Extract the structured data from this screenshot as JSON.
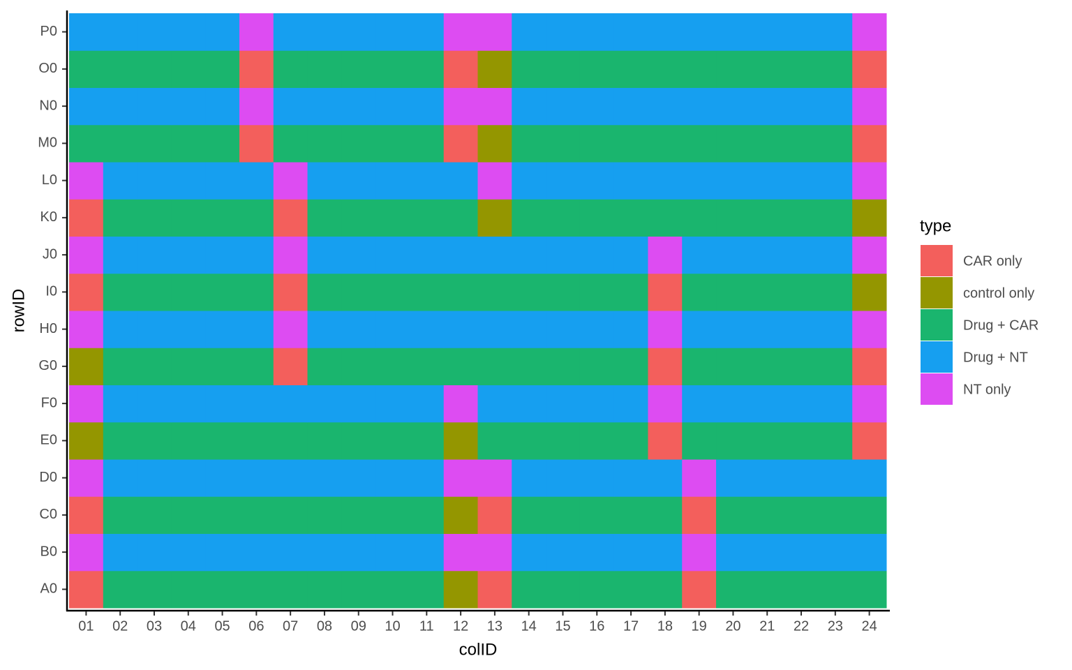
{
  "chart_data": {
    "type": "heatmap",
    "x_label": "colID",
    "y_label": "rowID",
    "categories": [
      "01",
      "02",
      "03",
      "04",
      "05",
      "06",
      "07",
      "08",
      "09",
      "10",
      "11",
      "12",
      "13",
      "14",
      "15",
      "16",
      "17",
      "18",
      "19",
      "20",
      "21",
      "22",
      "23",
      "24"
    ],
    "rows": [
      "A0",
      "B0",
      "C0",
      "D0",
      "E0",
      "F0",
      "G0",
      "H0",
      "I0",
      "J0",
      "K0",
      "L0",
      "M0",
      "N0",
      "O0",
      "P0"
    ],
    "legend": {
      "title": "type",
      "position": "right",
      "items": [
        {
          "name": "CAR only",
          "color": "#F35F5C"
        },
        {
          "name": "control only",
          "color": "#949600"
        },
        {
          "name": "Drug + CAR",
          "color": "#1AB56E"
        },
        {
          "name": "Drug + NT",
          "color": "#169FF0"
        },
        {
          "name": "NT only",
          "color": "#DD4CF2"
        }
      ]
    },
    "values": [
      [
        0,
        2,
        2,
        2,
        2,
        2,
        2,
        2,
        2,
        2,
        2,
        1,
        0,
        2,
        2,
        2,
        2,
        2,
        0,
        2,
        2,
        2,
        2,
        2
      ],
      [
        4,
        3,
        3,
        3,
        3,
        3,
        3,
        3,
        3,
        3,
        3,
        4,
        4,
        3,
        3,
        3,
        3,
        3,
        4,
        3,
        3,
        3,
        3,
        3
      ],
      [
        0,
        2,
        2,
        2,
        2,
        2,
        2,
        2,
        2,
        2,
        2,
        1,
        0,
        2,
        2,
        2,
        2,
        2,
        0,
        2,
        2,
        2,
        2,
        2
      ],
      [
        4,
        3,
        3,
        3,
        3,
        3,
        3,
        3,
        3,
        3,
        3,
        4,
        4,
        3,
        3,
        3,
        3,
        3,
        4,
        3,
        3,
        3,
        3,
        3
      ],
      [
        1,
        2,
        2,
        2,
        2,
        2,
        2,
        2,
        2,
        2,
        2,
        1,
        2,
        2,
        2,
        2,
        2,
        0,
        2,
        2,
        2,
        2,
        2,
        0
      ],
      [
        4,
        3,
        3,
        3,
        3,
        3,
        3,
        3,
        3,
        3,
        3,
        4,
        3,
        3,
        3,
        3,
        3,
        4,
        3,
        3,
        3,
        3,
        3,
        4
      ],
      [
        1,
        2,
        2,
        2,
        2,
        2,
        0,
        2,
        2,
        2,
        2,
        2,
        2,
        2,
        2,
        2,
        2,
        0,
        2,
        2,
        2,
        2,
        2,
        0
      ],
      [
        4,
        3,
        3,
        3,
        3,
        3,
        4,
        3,
        3,
        3,
        3,
        3,
        3,
        3,
        3,
        3,
        3,
        4,
        3,
        3,
        3,
        3,
        3,
        4
      ],
      [
        0,
        2,
        2,
        2,
        2,
        2,
        0,
        2,
        2,
        2,
        2,
        2,
        2,
        2,
        2,
        2,
        2,
        0,
        2,
        2,
        2,
        2,
        2,
        1
      ],
      [
        4,
        3,
        3,
        3,
        3,
        3,
        4,
        3,
        3,
        3,
        3,
        3,
        3,
        3,
        3,
        3,
        3,
        4,
        3,
        3,
        3,
        3,
        3,
        4
      ],
      [
        0,
        2,
        2,
        2,
        2,
        2,
        0,
        2,
        2,
        2,
        2,
        2,
        1,
        2,
        2,
        2,
        2,
        2,
        2,
        2,
        2,
        2,
        2,
        1
      ],
      [
        4,
        3,
        3,
        3,
        3,
        3,
        4,
        3,
        3,
        3,
        3,
        3,
        4,
        3,
        3,
        3,
        3,
        3,
        3,
        3,
        3,
        3,
        3,
        4
      ],
      [
        2,
        2,
        2,
        2,
        2,
        0,
        2,
        2,
        2,
        2,
        2,
        0,
        1,
        2,
        2,
        2,
        2,
        2,
        2,
        2,
        2,
        2,
        2,
        0
      ],
      [
        3,
        3,
        3,
        3,
        3,
        4,
        3,
        3,
        3,
        3,
        3,
        4,
        4,
        3,
        3,
        3,
        3,
        3,
        3,
        3,
        3,
        3,
        3,
        4
      ],
      [
        2,
        2,
        2,
        2,
        2,
        0,
        2,
        2,
        2,
        2,
        2,
        0,
        1,
        2,
        2,
        2,
        2,
        2,
        2,
        2,
        2,
        2,
        2,
        0
      ],
      [
        3,
        3,
        3,
        3,
        3,
        4,
        3,
        3,
        3,
        3,
        3,
        4,
        4,
        3,
        3,
        3,
        3,
        3,
        3,
        3,
        3,
        3,
        3,
        4
      ]
    ]
  }
}
